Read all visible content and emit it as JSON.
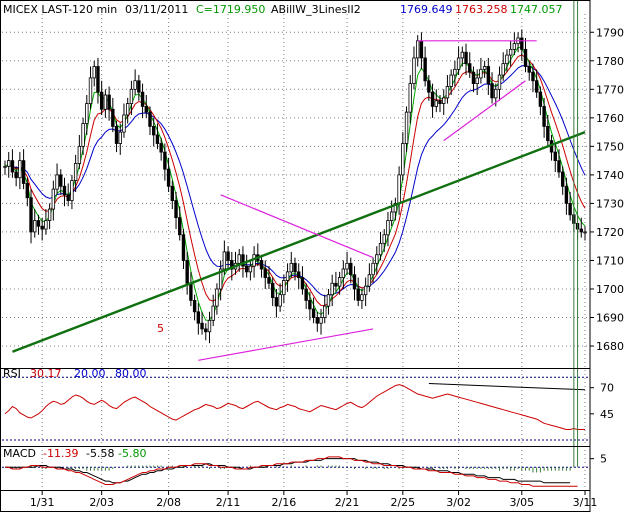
{
  "header": {
    "symbol": "MICEX LAST-120 min",
    "date": "03/11/2011",
    "close": "C=1719.950",
    "indicator": "ABillW_3LinesII2",
    "ind1": "1769.649",
    "ind2": "1763.258",
    "ind3": "1747.057"
  },
  "colors": {
    "blue": "#0000cc",
    "red": "#cc0000",
    "green": "#00aa00",
    "magenta": "#dd22dd",
    "trend": "#107010",
    "rsi": "#cc0000",
    "dotted": "#000080",
    "grid": "#7f7f7f"
  },
  "annotation_label": "5",
  "chart_data": {
    "type": "candlestick",
    "price_axis": {
      "ylim": [
        1673,
        1795
      ],
      "ticks": [
        "1680",
        "1690",
        "1700",
        "1710",
        "1720",
        "1730",
        "1740",
        "1750",
        "1760",
        "1770",
        "1780",
        "1790"
      ]
    },
    "x_ticks": [
      "1/31",
      "2/03",
      "2/08",
      "2/11",
      "2/16",
      "2/21",
      "2/25",
      "3/02",
      "3/05",
      "3/11"
    ],
    "x_tick_bars": [
      10,
      26,
      44,
      60,
      75,
      92,
      107,
      122,
      139,
      156
    ],
    "bar_count": 157,
    "close_series": [
      1743,
      1745,
      1741,
      1739,
      1745,
      1737,
      1732,
      1720,
      1724,
      1722,
      1721,
      1724,
      1728,
      1735,
      1740,
      1736,
      1733,
      1731,
      1738,
      1744,
      1750,
      1758,
      1765,
      1774,
      1778,
      1769,
      1763,
      1768,
      1763,
      1757,
      1751,
      1755,
      1761,
      1765,
      1770,
      1773,
      1769,
      1764,
      1762,
      1757,
      1754,
      1751,
      1748,
      1742,
      1736,
      1731,
      1725,
      1719,
      1710,
      1702,
      1696,
      1692,
      1688,
      1686,
      1685,
      1689,
      1694,
      1700,
      1707,
      1713,
      1710,
      1707,
      1709,
      1712,
      1708,
      1706,
      1708,
      1712,
      1710,
      1707,
      1704,
      1702,
      1697,
      1694,
      1698,
      1703,
      1706,
      1709,
      1706,
      1704,
      1700,
      1696,
      1693,
      1690,
      1688,
      1690,
      1694,
      1698,
      1702,
      1701,
      1704,
      1707,
      1709,
      1705,
      1700,
      1696,
      1698,
      1701,
      1705,
      1709,
      1712,
      1716,
      1719,
      1724,
      1727,
      1730,
      1740,
      1751,
      1762,
      1772,
      1781,
      1787,
      1781,
      1773,
      1769,
      1764,
      1766,
      1765,
      1767,
      1771,
      1775,
      1777,
      1781,
      1783,
      1779,
      1776,
      1772,
      1774,
      1777,
      1778,
      1772,
      1767,
      1770,
      1775,
      1779,
      1782,
      1784,
      1786,
      1788,
      1784,
      1778,
      1776,
      1773,
      1769,
      1764,
      1757,
      1752,
      1748,
      1745,
      1741,
      1736,
      1730,
      1726,
      1723,
      1721,
      1720,
      1720
    ],
    "trend_lines": [
      {
        "name": "green-trend",
        "points": [
          [
            2,
            1678
          ],
          [
            156,
            1755
          ]
        ]
      },
      {
        "name": "top-line",
        "points": [
          [
            111,
            1787
          ],
          [
            143,
            1787
          ]
        ]
      },
      {
        "name": "wedge-upper",
        "points": [
          [
            118,
            1752
          ],
          [
            140,
            1773
          ]
        ]
      },
      {
        "name": "triangle-upper",
        "points": [
          [
            58,
            1733
          ],
          [
            99,
            1711
          ]
        ]
      },
      {
        "name": "triangle-lower",
        "points": [
          [
            52,
            1675
          ],
          [
            99,
            1686
          ]
        ]
      }
    ],
    "rsi": {
      "label": "RSI",
      "value": "30.17",
      "low": "20.00",
      "high": "80.00",
      "ticks": [
        "70",
        "45"
      ],
      "range": [
        20,
        85
      ],
      "values": [
        45,
        48,
        52,
        50,
        46,
        44,
        42,
        41,
        43,
        45,
        48,
        52,
        55,
        57,
        56,
        54,
        55,
        58,
        61,
        63,
        62,
        60,
        57,
        55,
        54,
        56,
        58,
        56,
        53,
        51,
        50,
        53,
        56,
        58,
        60,
        61,
        59,
        57,
        55,
        52,
        50,
        48,
        46,
        44,
        42,
        40,
        39,
        41,
        43,
        45,
        47,
        49,
        50,
        52,
        54,
        53,
        52,
        50,
        51,
        53,
        55,
        54,
        53,
        51,
        50,
        52,
        54,
        56,
        57,
        55,
        53,
        51,
        50,
        49,
        51,
        52,
        54,
        53,
        52,
        50,
        49,
        48,
        47,
        49,
        51,
        53,
        52,
        51,
        50,
        49,
        51,
        53,
        55,
        56,
        54,
        52,
        51,
        53,
        56,
        59,
        62,
        64,
        66,
        68,
        70,
        72,
        73,
        72,
        70,
        68,
        66,
        64,
        63,
        62,
        61,
        60,
        61,
        62,
        63,
        64,
        63,
        62,
        61,
        60,
        59,
        58,
        57,
        56,
        55,
        54,
        53,
        52,
        51,
        50,
        49,
        48,
        47,
        46,
        45,
        44,
        43,
        42,
        41,
        40,
        38,
        36,
        35,
        34,
        33,
        32,
        31,
        30,
        30,
        31,
        30,
        30,
        30
      ],
      "trend_line": [
        [
          114,
          74
        ],
        [
          156,
          68
        ]
      ]
    },
    "macd": {
      "label": "MACD",
      "values": [
        "-11.39",
        "-5.58",
        "-5.80"
      ],
      "tick": "5",
      "range": [
        -12,
        10
      ],
      "macd_line": [
        0,
        0,
        -1,
        -1,
        -1,
        0,
        0,
        1,
        1,
        1,
        0,
        0,
        0,
        0,
        -1,
        -1,
        -1,
        -2,
        -2,
        -3,
        -3,
        -4,
        -5,
        -6,
        -7,
        -8,
        -9,
        -10,
        -10,
        -10,
        -9,
        -9,
        -8,
        -7,
        -6,
        -5,
        -4,
        -3,
        -3,
        -2,
        -2,
        -1,
        -1,
        -1,
        0,
        0,
        0,
        1,
        1,
        1,
        1,
        2,
        2,
        2,
        2,
        1,
        1,
        1,
        0,
        0,
        0,
        0,
        -1,
        -1,
        -1,
        -1,
        0,
        0,
        0,
        1,
        1,
        1,
        1,
        2,
        2,
        2,
        2,
        3,
        3,
        3,
        3,
        4,
        4,
        4,
        5,
        5,
        5,
        6,
        6,
        6,
        6,
        5,
        5,
        5,
        4,
        4,
        4,
        3,
        3,
        2,
        2,
        2,
        1,
        1,
        1,
        1,
        0,
        0,
        0,
        0,
        -1,
        -1,
        -1,
        -1,
        -2,
        -2,
        -2,
        -3,
        -3,
        -3,
        -3,
        -4,
        -4,
        -4,
        -5,
        -5,
        -5,
        -6,
        -6,
        -6,
        -7,
        -7,
        -7,
        -8,
        -8,
        -8,
        -9,
        -9,
        -9,
        -10,
        -10,
        -10,
        -11,
        -11,
        -11,
        -11,
        -11,
        -11,
        -11,
        -11,
        -11,
        -11,
        -11,
        -11,
        -11
      ],
      "signal_line": [
        0,
        0,
        0,
        0,
        0,
        0,
        0,
        0,
        0,
        1,
        1,
        1,
        0,
        0,
        0,
        0,
        -1,
        -1,
        -1,
        -2,
        -2,
        -3,
        -3,
        -4,
        -5,
        -6,
        -7,
        -8,
        -8,
        -9,
        -9,
        -9,
        -8,
        -8,
        -7,
        -6,
        -5,
        -4,
        -4,
        -3,
        -3,
        -2,
        -2,
        -1,
        -1,
        -1,
        0,
        0,
        0,
        1,
        1,
        1,
        1,
        1,
        2,
        2,
        1,
        1,
        1,
        1,
        0,
        0,
        0,
        0,
        -1,
        -1,
        -1,
        0,
        0,
        0,
        0,
        1,
        1,
        1,
        1,
        2,
        2,
        2,
        3,
        3,
        3,
        3,
        4,
        4,
        4,
        4,
        5,
        5,
        5,
        5,
        5,
        5,
        5,
        5,
        5,
        4,
        4,
        4,
        3,
        3,
        3,
        2,
        2,
        2,
        1,
        1,
        1,
        1,
        0,
        0,
        0,
        0,
        -1,
        -1,
        -1,
        -1,
        -2,
        -2,
        -2,
        -2,
        -3,
        -3,
        -3,
        -4,
        -4,
        -4,
        -4,
        -5,
        -5,
        -5,
        -6,
        -6,
        -6,
        -6,
        -7,
        -7,
        -7,
        -7,
        -8,
        -8,
        -8,
        -8,
        -8,
        -8,
        -8,
        -9,
        -9,
        -9,
        -9,
        -9,
        -9,
        -9,
        -9
      ]
    }
  }
}
